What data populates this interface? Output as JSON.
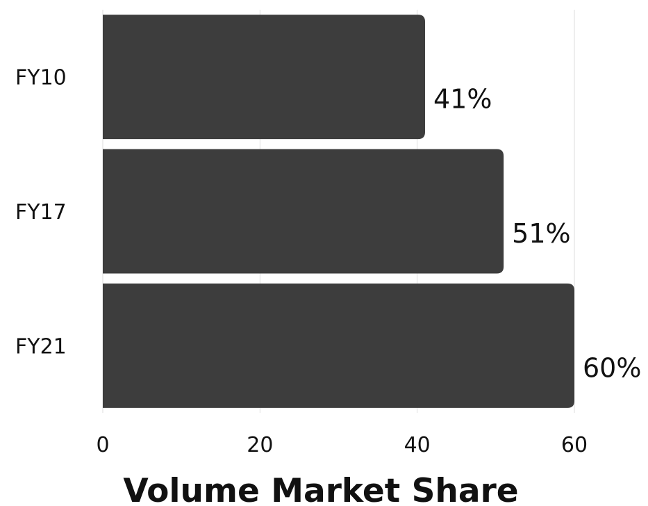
{
  "chart_data": {
    "type": "bar",
    "orientation": "horizontal",
    "categories": [
      "FY10",
      "FY17",
      "FY21"
    ],
    "values": [
      41,
      51,
      60
    ],
    "value_labels": [
      "41%",
      "51%",
      "60%"
    ],
    "title": "",
    "xlabel": "Volume Market Share",
    "ylabel": "",
    "xlim": [
      0,
      60
    ],
    "xticks": [
      "0",
      "20",
      "40",
      "60"
    ],
    "grid": "vertical",
    "legend": "none",
    "bar_color": "#3d3d3d",
    "gridline_color": "#dedede",
    "text_color": "#111111"
  }
}
